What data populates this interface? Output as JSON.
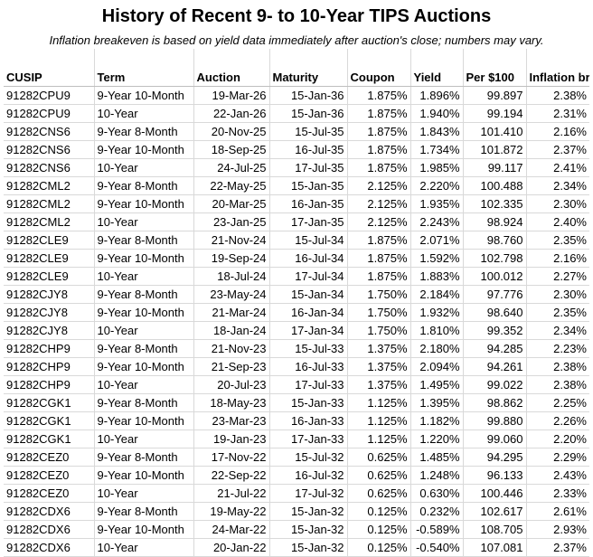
{
  "title": "History of Recent 9- to 10-Year TIPS Auctions",
  "subtitle": "Inflation breakeven is based on yield data immediately after auction's close; numbers may vary.",
  "columns": [
    "CUSIP",
    "Term",
    "Auction",
    "Maturity",
    "Coupon",
    "Yield",
    "Per $100",
    "Inflation breakeven"
  ],
  "rows": [
    [
      "91282CPU9",
      "9-Year 10-Month",
      "19-Mar-26",
      "15-Jan-36",
      "1.875%",
      "1.896%",
      "99.897",
      "2.38%"
    ],
    [
      "91282CPU9",
      "10-Year",
      "22-Jan-26",
      "15-Jan-36",
      "1.875%",
      "1.940%",
      "99.194",
      "2.31%"
    ],
    [
      "91282CNS6",
      "9-Year 8-Month",
      "20-Nov-25",
      "15-Jul-35",
      "1.875%",
      "1.843%",
      "101.410",
      "2.16%"
    ],
    [
      "91282CNS6",
      "9-Year 10-Month",
      "18-Sep-25",
      "16-Jul-35",
      "1.875%",
      "1.734%",
      "101.872",
      "2.37%"
    ],
    [
      "91282CNS6",
      "10-Year",
      "24-Jul-25",
      "17-Jul-35",
      "1.875%",
      "1.985%",
      "99.117",
      "2.41%"
    ],
    [
      "91282CML2",
      "9-Year 8-Month",
      "22-May-25",
      "15-Jan-35",
      "2.125%",
      "2.220%",
      "100.488",
      "2.34%"
    ],
    [
      "91282CML2",
      "9-Year 10-Month",
      "20-Mar-25",
      "16-Jan-35",
      "2.125%",
      "1.935%",
      "102.335",
      "2.30%"
    ],
    [
      "91282CML2",
      "10-Year",
      "23-Jan-25",
      "17-Jan-35",
      "2.125%",
      "2.243%",
      "98.924",
      "2.40%"
    ],
    [
      "91282CLE9",
      "9-Year 8-Month",
      "21-Nov-24",
      "15-Jul-34",
      "1.875%",
      "2.071%",
      "98.760",
      "2.35%"
    ],
    [
      "91282CLE9",
      "9-Year 10-Month",
      "19-Sep-24",
      "16-Jul-34",
      "1.875%",
      "1.592%",
      "102.798",
      "2.16%"
    ],
    [
      "91282CLE9",
      "10-Year",
      "18-Jul-24",
      "17-Jul-34",
      "1.875%",
      "1.883%",
      "100.012",
      "2.27%"
    ],
    [
      "91282CJY8",
      "9-Year 8-Month",
      "23-May-24",
      "15-Jan-34",
      "1.750%",
      "2.184%",
      "97.776",
      "2.30%"
    ],
    [
      "91282CJY8",
      "9-Year 10-Month",
      "21-Mar-24",
      "16-Jan-34",
      "1.750%",
      "1.932%",
      "98.640",
      "2.35%"
    ],
    [
      "91282CJY8",
      "10-Year",
      "18-Jan-24",
      "17-Jan-34",
      "1.750%",
      "1.810%",
      "99.352",
      "2.34%"
    ],
    [
      "91282CHP9",
      "9-Year 8-Month",
      "21-Nov-23",
      "15-Jul-33",
      "1.375%",
      "2.180%",
      "94.285",
      "2.23%"
    ],
    [
      "91282CHP9",
      "9-Year 10-Month",
      "21-Sep-23",
      "16-Jul-33",
      "1.375%",
      "2.094%",
      "94.261",
      "2.38%"
    ],
    [
      "91282CHP9",
      "10-Year",
      "20-Jul-23",
      "17-Jul-33",
      "1.375%",
      "1.495%",
      "99.022",
      "2.38%"
    ],
    [
      "91282CGK1",
      "9-Year 8-Month",
      "18-May-23",
      "15-Jan-33",
      "1.125%",
      "1.395%",
      "98.862",
      "2.25%"
    ],
    [
      "91282CGK1",
      "9-Year 10-Month",
      "23-Mar-23",
      "16-Jan-33",
      "1.125%",
      "1.182%",
      "99.880",
      "2.26%"
    ],
    [
      "91282CGK1",
      "10-Year",
      "19-Jan-23",
      "17-Jan-33",
      "1.125%",
      "1.220%",
      "99.060",
      "2.20%"
    ],
    [
      "91282CEZ0",
      "9-Year 8-Month",
      "17-Nov-22",
      "15-Jul-32",
      "0.625%",
      "1.485%",
      "94.295",
      "2.29%"
    ],
    [
      "91282CEZ0",
      "9-Year 10-Month",
      "22-Sep-22",
      "16-Jul-32",
      "0.625%",
      "1.248%",
      "96.133",
      "2.43%"
    ],
    [
      "91282CEZ0",
      "10-Year",
      "21-Jul-22",
      "17-Jul-32",
      "0.625%",
      "0.630%",
      "100.446",
      "2.33%"
    ],
    [
      "91282CDX6",
      "9-Year 8-Month",
      "19-May-22",
      "15-Jan-32",
      "0.125%",
      "0.232%",
      "102.617",
      "2.61%"
    ],
    [
      "91282CDX6",
      "9-Year 10-Month",
      "24-Mar-22",
      "15-Jan-32",
      "0.125%",
      "-0.589%",
      "108.705",
      "2.93%"
    ],
    [
      "91282CDX6",
      "10-Year",
      "20-Jan-22",
      "15-Jan-32",
      "0.125%",
      "-0.540%",
      "107.081",
      "2.37%"
    ]
  ]
}
